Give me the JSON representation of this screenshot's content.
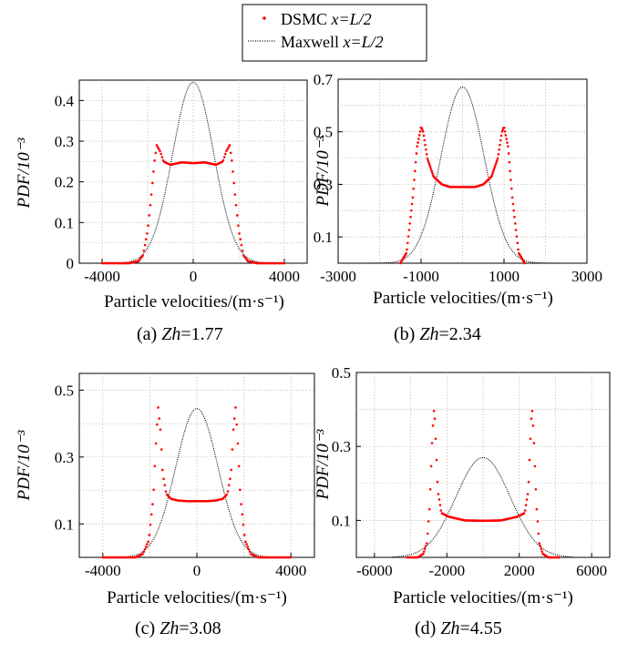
{
  "legend": {
    "entries": [
      {
        "name": "DSMC",
        "condition": "x=L/2",
        "marker": "dot",
        "color": "#ff0000"
      },
      {
        "name": "Maxwell",
        "condition": "x=L/2",
        "marker": "dotted-line",
        "color": "#000000"
      }
    ]
  },
  "chart_data": [
    {
      "type": "line",
      "panel": "(a)",
      "caption_prefix": "(a)",
      "caption_param": "Zh",
      "caption_value": "=1.77",
      "xlabel": "Particle velocities/(m·s⁻¹)",
      "ylabel": "PDF/10⁻³",
      "xlim": [
        -5000,
        5000
      ],
      "ylim": [
        0,
        0.45
      ],
      "xticks": [
        -4000,
        0,
        4000
      ],
      "xtick_labels": [
        "-4000",
        "0",
        "4000"
      ],
      "yticks": [
        0,
        0.1,
        0.2,
        0.3,
        0.4
      ],
      "ytick_labels": [
        "0",
        "0.1",
        "0.2",
        "0.3",
        "0.4"
      ],
      "grid": true,
      "series": [
        {
          "name": "DSMC x=L/2",
          "x": [
            -4000,
            -2800,
            -2400,
            -2200,
            -2000,
            -1850,
            -1700,
            -1600,
            -1450,
            -1300,
            -1000,
            -500,
            0,
            500,
            1000,
            1300,
            1450,
            1600,
            1700,
            1850,
            2000,
            2200,
            2400,
            2800,
            4000
          ],
          "values": [
            0,
            0,
            0.005,
            0.02,
            0.08,
            0.16,
            0.25,
            0.29,
            0.275,
            0.25,
            0.242,
            0.248,
            0.246,
            0.248,
            0.242,
            0.25,
            0.275,
            0.29,
            0.25,
            0.16,
            0.08,
            0.02,
            0.005,
            0,
            0
          ]
        },
        {
          "name": "Maxwell x=L/2",
          "gaussian": {
            "mu": 0,
            "sigma": 900,
            "peak": 0.445
          },
          "range": [
            -4000,
            4000
          ]
        }
      ]
    },
    {
      "type": "line",
      "panel": "(b)",
      "caption_prefix": "(b)",
      "caption_param": "Zh",
      "caption_value": "=2.34",
      "xlabel": "Particle velocities/(m·s⁻¹)",
      "ylabel": "PDF/10⁻³",
      "xlim": [
        -3000,
        3000
      ],
      "ylim": [
        0,
        0.7
      ],
      "xticks": [
        -3000,
        -1000,
        1000,
        3000
      ],
      "xtick_labels": [
        "-3000",
        "-1000",
        "1000",
        "3000"
      ],
      "yticks": [
        0.1,
        0.3,
        0.5,
        0.7
      ],
      "ytick_labels": [
        "0.1",
        "0.3",
        "0.5",
        "0.7"
      ],
      "grid": true,
      "series": [
        {
          "name": "DSMC x=L/2",
          "x": [
            -1500,
            -1350,
            -1200,
            -1100,
            -1000,
            -950,
            -850,
            -700,
            -500,
            -300,
            0,
            300,
            500,
            700,
            850,
            950,
            1000,
            1100,
            1200,
            1350,
            1500
          ],
          "values": [
            0,
            0.04,
            0.25,
            0.44,
            0.52,
            0.5,
            0.4,
            0.33,
            0.3,
            0.29,
            0.29,
            0.29,
            0.3,
            0.33,
            0.4,
            0.5,
            0.52,
            0.44,
            0.25,
            0.04,
            0
          ]
        },
        {
          "name": "Maxwell x=L/2",
          "gaussian": {
            "mu": 0,
            "sigma": 520,
            "peak": 0.67
          },
          "range": [
            -2700,
            2700
          ]
        }
      ]
    },
    {
      "type": "line",
      "panel": "(c)",
      "caption_prefix": "(c)",
      "caption_param": "Zh",
      "caption_value": "=3.08",
      "xlabel": "Particle velocities/(m·s⁻¹)",
      "ylabel": "PDF/10⁻³",
      "xlim": [
        -5000,
        5000
      ],
      "ylim": [
        0,
        0.55
      ],
      "xticks": [
        -4000,
        0,
        4000
      ],
      "xtick_labels": [
        "-4000",
        "0",
        "4000"
      ],
      "yticks": [
        0.1,
        0.3,
        0.5
      ],
      "ytick_labels": [
        "0.1",
        "0.3",
        "0.5"
      ],
      "grid": true,
      "series": [
        {
          "name": "DSMC x=L/2",
          "x": [
            -4000,
            -2600,
            -2300,
            -2050,
            -1850,
            -1750,
            -1650,
            -1550,
            -1450,
            -1300,
            -1100,
            -800,
            -400,
            0,
            400,
            800,
            1100,
            1300,
            1450,
            1550,
            1650,
            1750,
            1850,
            2050,
            2300,
            2600,
            4000
          ],
          "values": [
            0,
            0,
            0.01,
            0.05,
            0.18,
            0.33,
            0.45,
            0.38,
            0.25,
            0.19,
            0.175,
            0.17,
            0.168,
            0.168,
            0.168,
            0.17,
            0.175,
            0.19,
            0.25,
            0.38,
            0.45,
            0.33,
            0.18,
            0.05,
            0.01,
            0,
            0
          ]
        },
        {
          "name": "Maxwell x=L/2",
          "gaussian": {
            "mu": 0,
            "sigma": 900,
            "peak": 0.445
          },
          "range": [
            -4000,
            4000
          ]
        }
      ]
    },
    {
      "type": "line",
      "panel": "(d)",
      "caption_prefix": "(d)",
      "caption_param": "Zh",
      "caption_value": "=4.55",
      "xlabel": "Particle velocities/(m·s⁻¹)",
      "ylabel": "PDF/10⁻³",
      "xlim": [
        -7000,
        7000
      ],
      "ylim": [
        0,
        0.5
      ],
      "xticks": [
        -6000,
        -2000,
        2000,
        6000
      ],
      "xtick_labels": [
        "-6000",
        "-2000",
        "2000",
        "6000"
      ],
      "yticks": [
        0.1,
        0.3,
        0.5
      ],
      "ytick_labels": [
        "0.1",
        "0.3",
        "0.5"
      ],
      "grid": true,
      "series": [
        {
          "name": "DSMC x=L/2",
          "x": [
            -4200,
            -3600,
            -3300,
            -3100,
            -2950,
            -2800,
            -2700,
            -2600,
            -2500,
            -2300,
            -1900,
            -1000,
            0,
            1000,
            1900,
            2300,
            2500,
            2600,
            2700,
            2800,
            2950,
            3100,
            3300,
            3600,
            4200
          ],
          "values": [
            0,
            0,
            0.01,
            0.04,
            0.14,
            0.33,
            0.41,
            0.3,
            0.18,
            0.12,
            0.11,
            0.1,
            0.099,
            0.1,
            0.11,
            0.12,
            0.18,
            0.3,
            0.41,
            0.33,
            0.14,
            0.04,
            0.01,
            0,
            0
          ]
        },
        {
          "name": "Maxwell x=L/2",
          "gaussian": {
            "mu": 0,
            "sigma": 1500,
            "peak": 0.27
          },
          "range": [
            -5000,
            5000
          ]
        }
      ]
    }
  ]
}
